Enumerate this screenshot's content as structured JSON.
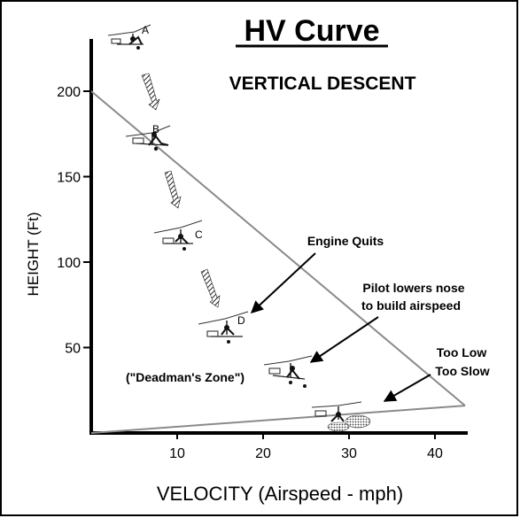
{
  "title": "HV Curve",
  "subtitle": "VERTICAL DESCENT",
  "xlabel": "VELOCITY (Airspeed - mph)",
  "ylabel": "HEIGHT (Ft)",
  "x_ticks": [
    "10",
    "20",
    "30",
    "40"
  ],
  "y_ticks": [
    "50",
    "100",
    "150",
    "200"
  ],
  "annotations": {
    "engine_quits": "Engine Quits",
    "pilot_line1": "Pilot lowers nose",
    "pilot_line2": "to build airspeed",
    "too_low": "Too Low",
    "too_slow": "Too Slow",
    "deadman": "(\"Deadman's Zone\")"
  },
  "aircraft_labels": [
    "A",
    "B",
    "C",
    "D"
  ],
  "chart_data": {
    "type": "line",
    "title": "HV Curve",
    "subtitle": "VERTICAL DESCENT",
    "xlabel": "VELOCITY (Airspeed - mph)",
    "ylabel": "HEIGHT (Ft)",
    "xlim": [
      0,
      45
    ],
    "ylim": [
      0,
      225
    ],
    "boundary": [
      {
        "x": 0,
        "y": 200
      },
      {
        "x": 43.5,
        "y": 16
      },
      {
        "x": 0,
        "y": 0
      }
    ]
  }
}
